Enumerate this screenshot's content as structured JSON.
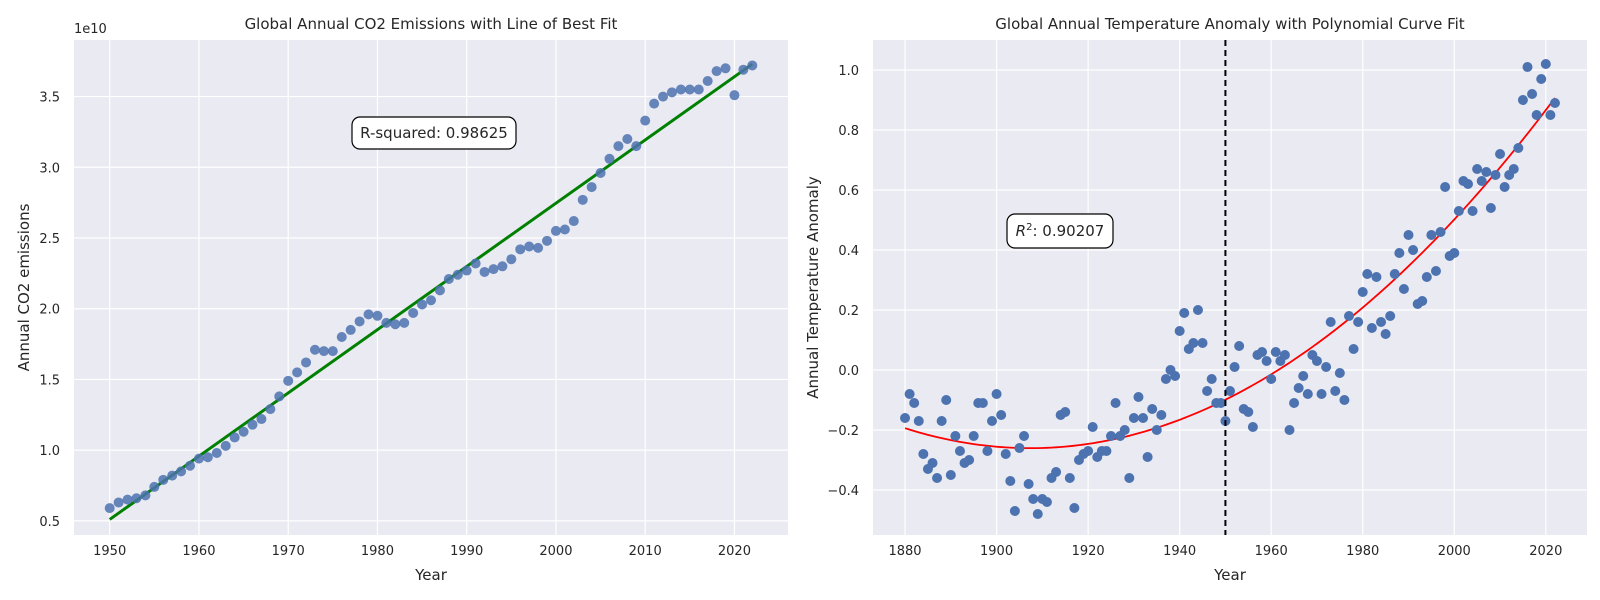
{
  "chart_data": [
    {
      "type": "scatter",
      "title": "Global Annual CO2 Emissions with Line of Best Fit",
      "xlabel": "Year",
      "ylabel": "Annual CO2 emissions",
      "y_offset_label": "1e10",
      "xlim": [
        1946,
        2026
      ],
      "ylim": [
        0.4,
        3.9
      ],
      "y_scale_note": "values in units of 1e10",
      "x_ticks": [
        "1950",
        "1960",
        "1970",
        "1980",
        "1990",
        "2000",
        "2010",
        "2020"
      ],
      "y_ticks": [
        "0.5",
        "1.0",
        "1.5",
        "2.0",
        "2.5",
        "3.0",
        "3.5"
      ],
      "grid": true,
      "annotation": "R-squared: 0.98625",
      "point_color": "#4c72b0",
      "fit_color": "#008000",
      "series": [
        {
          "x": [
            1950,
            1951,
            1952,
            1953,
            1954,
            1955,
            1956,
            1957,
            1958,
            1959,
            1960,
            1961,
            1962,
            1963,
            1964,
            1965,
            1966,
            1967,
            1968,
            1969,
            1970,
            1971,
            1972,
            1973,
            1974,
            1975,
            1976,
            1977,
            1978,
            1979,
            1980,
            1981,
            1982,
            1983,
            1984,
            1985,
            1986,
            1987,
            1988,
            1989,
            1990,
            1991,
            1992,
            1993,
            1994,
            1995,
            1996,
            1997,
            1998,
            1999,
            2000,
            2001,
            2002,
            2003,
            2004,
            2005,
            2006,
            2007,
            2008,
            2009,
            2010,
            2011,
            2012,
            2013,
            2014,
            2015,
            2016,
            2017,
            2018,
            2019,
            2020,
            2021,
            2022
          ],
          "y": [
            0.59,
            0.63,
            0.65,
            0.66,
            0.68,
            0.74,
            0.79,
            0.82,
            0.85,
            0.89,
            0.94,
            0.95,
            0.98,
            1.03,
            1.09,
            1.13,
            1.18,
            1.22,
            1.29,
            1.38,
            1.49,
            1.55,
            1.62,
            1.71,
            1.7,
            1.7,
            1.8,
            1.85,
            1.91,
            1.96,
            1.95,
            1.9,
            1.89,
            1.9,
            1.97,
            2.03,
            2.06,
            2.13,
            2.21,
            2.24,
            2.27,
            2.32,
            2.26,
            2.28,
            2.3,
            2.35,
            2.42,
            2.44,
            2.43,
            2.48,
            2.55,
            2.56,
            2.62,
            2.77,
            2.86,
            2.96,
            3.06,
            3.15,
            3.2,
            3.15,
            3.33,
            3.45,
            3.5,
            3.53,
            3.55,
            3.55,
            3.55,
            3.61,
            3.68,
            3.7,
            3.51,
            3.69,
            3.72
          ]
        },
        {
          "x": [
            1950,
            2022
          ],
          "y": [
            0.51,
            3.73
          ]
        }
      ]
    },
    {
      "type": "scatter",
      "title": "Global Annual Temperature Anomaly with Polynomial Curve Fit",
      "xlabel": "Year",
      "ylabel": "Annual Temperature Anomaly",
      "xlim": [
        1873,
        2029
      ],
      "ylim": [
        -0.55,
        1.1
      ],
      "x_ticks": [
        "1880",
        "1900",
        "1920",
        "1940",
        "1960",
        "1980",
        "2000",
        "2020"
      ],
      "y_ticks": [
        "−0.4",
        "−0.2",
        "0.0",
        "0.2",
        "0.4",
        "0.6",
        "0.8",
        "1.0"
      ],
      "grid": true,
      "annotation_prefix": "R",
      "annotation_sup": "2",
      "annotation_value": ": 0.90207",
      "vline_x": 1950,
      "point_color": "#4c72b0",
      "fit_color": "#ff0000",
      "series": [
        {
          "x": [
            1880,
            1881,
            1882,
            1883,
            1884,
            1885,
            1886,
            1887,
            1888,
            1889,
            1890,
            1891,
            1892,
            1893,
            1894,
            1895,
            1896,
            1897,
            1898,
            1899,
            1900,
            1901,
            1902,
            1903,
            1904,
            1905,
            1906,
            1907,
            1908,
            1909,
            1910,
            1911,
            1912,
            1913,
            1914,
            1915,
            1916,
            1917,
            1918,
            1919,
            1920,
            1921,
            1922,
            1923,
            1924,
            1925,
            1926,
            1927,
            1928,
            1929,
            1930,
            1931,
            1932,
            1933,
            1934,
            1935,
            1936,
            1937,
            1938,
            1939,
            1940,
            1941,
            1942,
            1943,
            1944,
            1945,
            1946,
            1947,
            1948,
            1949,
            1950,
            1951,
            1952,
            1953,
            1954,
            1955,
            1956,
            1957,
            1958,
            1959,
            1960,
            1961,
            1962,
            1963,
            1964,
            1965,
            1966,
            1967,
            1968,
            1969,
            1970,
            1971,
            1972,
            1973,
            1974,
            1975,
            1976,
            1977,
            1978,
            1979,
            1980,
            1981,
            1982,
            1983,
            1984,
            1985,
            1986,
            1987,
            1988,
            1989,
            1990,
            1991,
            1992,
            1993,
            1994,
            1995,
            1996,
            1997,
            1998,
            1999,
            2000,
            2001,
            2002,
            2003,
            2004,
            2005,
            2006,
            2007,
            2008,
            2009,
            2010,
            2011,
            2012,
            2013,
            2014,
            2015,
            2016,
            2017,
            2018,
            2019,
            2020,
            2021,
            2022
          ],
          "y": [
            -0.16,
            -0.08,
            -0.11,
            -0.17,
            -0.28,
            -0.33,
            -0.31,
            -0.36,
            -0.17,
            -0.1,
            -0.35,
            -0.22,
            -0.27,
            -0.31,
            -0.3,
            -0.22,
            -0.11,
            -0.11,
            -0.27,
            -0.17,
            -0.08,
            -0.15,
            -0.28,
            -0.37,
            -0.47,
            -0.26,
            -0.22,
            -0.38,
            -0.43,
            -0.48,
            -0.43,
            -0.44,
            -0.36,
            -0.34,
            -0.15,
            -0.14,
            -0.36,
            -0.46,
            -0.3,
            -0.28,
            -0.27,
            -0.19,
            -0.29,
            -0.27,
            -0.27,
            -0.22,
            -0.11,
            -0.22,
            -0.2,
            -0.36,
            -0.16,
            -0.09,
            -0.16,
            -0.29,
            -0.13,
            -0.2,
            -0.15,
            -0.03,
            0.0,
            -0.02,
            0.13,
            0.19,
            0.07,
            0.09,
            0.2,
            0.09,
            -0.07,
            -0.03,
            -0.11,
            -0.11,
            -0.17,
            -0.07,
            0.01,
            0.08,
            -0.13,
            -0.14,
            -0.19,
            0.05,
            0.06,
            0.03,
            -0.03,
            0.06,
            0.03,
            0.05,
            -0.2,
            -0.11,
            -0.06,
            -0.02,
            -0.08,
            0.05,
            0.03,
            -0.08,
            0.01,
            0.16,
            -0.07,
            -0.01,
            -0.1,
            0.18,
            0.07,
            0.16,
            0.26,
            0.32,
            0.14,
            0.31,
            0.16,
            0.12,
            0.18,
            0.32,
            0.39,
            0.27,
            0.45,
            0.4,
            0.22,
            0.23,
            0.31,
            0.45,
            0.33,
            0.46,
            0.61,
            0.38,
            0.39,
            0.53,
            0.63,
            0.62,
            0.53,
            0.67,
            0.63,
            0.66,
            0.54,
            0.65,
            0.72,
            0.61,
            0.65,
            0.67,
            0.74,
            0.9,
            1.01,
            0.92,
            0.85,
            0.97,
            1.02,
            0.85,
            0.89
          ]
        }
      ]
    }
  ]
}
